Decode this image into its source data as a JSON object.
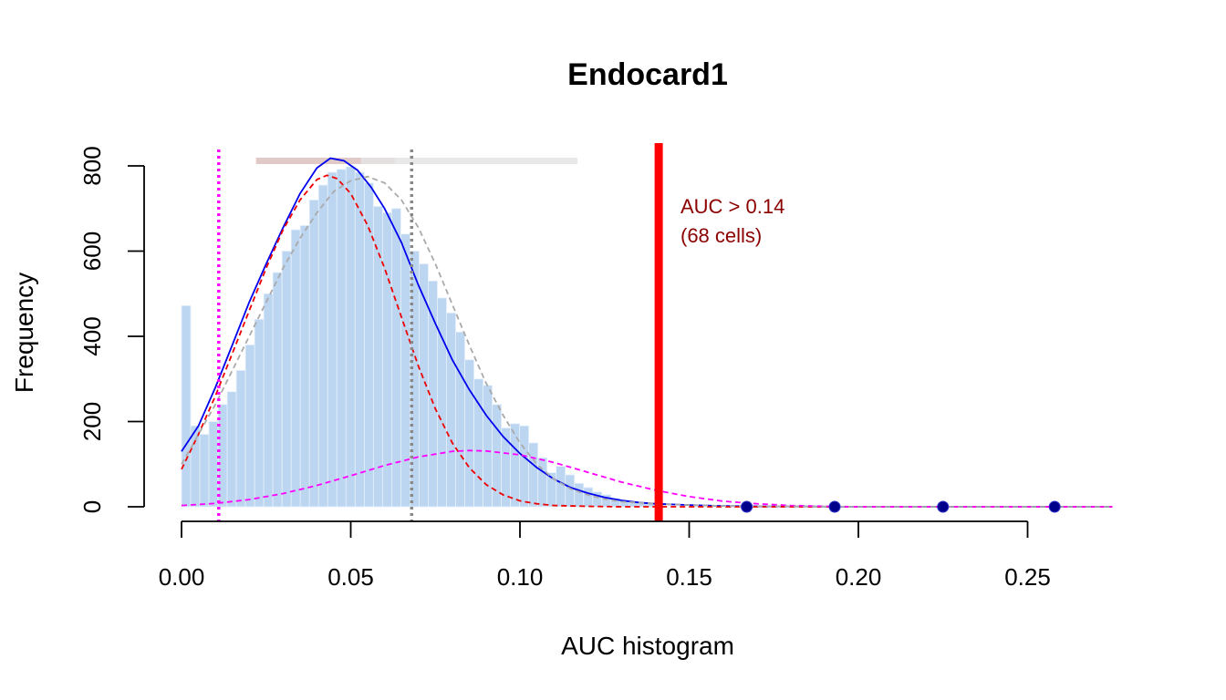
{
  "chart_data": {
    "type": "histogram",
    "title": "Endocard1",
    "xlabel": "AUC histogram",
    "ylabel": "Frequency",
    "xlim": [
      0,
      0.275
    ],
    "ylim": [
      0,
      850
    ],
    "x_ticks": [
      0,
      0.05,
      0.1,
      0.15,
      0.2,
      0.25
    ],
    "x_tick_labels": [
      "0.00",
      "0.05",
      "0.10",
      "0.15",
      "0.20",
      "0.25"
    ],
    "y_ticks": [
      0,
      200,
      400,
      600,
      800
    ],
    "y_tick_labels": [
      "0",
      "200",
      "400",
      "600",
      "800"
    ],
    "bin_width": 0.0027,
    "bins": [
      {
        "x": 0.0,
        "y": 472
      },
      {
        "x": 0.0027,
        "y": 190
      },
      {
        "x": 0.0054,
        "y": 170
      },
      {
        "x": 0.0081,
        "y": 200
      },
      {
        "x": 0.0108,
        "y": 240
      },
      {
        "x": 0.0135,
        "y": 270
      },
      {
        "x": 0.0162,
        "y": 320
      },
      {
        "x": 0.0189,
        "y": 380
      },
      {
        "x": 0.0216,
        "y": 440
      },
      {
        "x": 0.0243,
        "y": 500
      },
      {
        "x": 0.027,
        "y": 550
      },
      {
        "x": 0.0297,
        "y": 600
      },
      {
        "x": 0.0324,
        "y": 650
      },
      {
        "x": 0.0351,
        "y": 660
      },
      {
        "x": 0.0378,
        "y": 720
      },
      {
        "x": 0.0405,
        "y": 755
      },
      {
        "x": 0.0432,
        "y": 785
      },
      {
        "x": 0.0459,
        "y": 792
      },
      {
        "x": 0.0486,
        "y": 798
      },
      {
        "x": 0.0513,
        "y": 785
      },
      {
        "x": 0.054,
        "y": 760
      },
      {
        "x": 0.0567,
        "y": 705
      },
      {
        "x": 0.0594,
        "y": 690
      },
      {
        "x": 0.0621,
        "y": 700
      },
      {
        "x": 0.0648,
        "y": 640
      },
      {
        "x": 0.0675,
        "y": 600
      },
      {
        "x": 0.0702,
        "y": 570
      },
      {
        "x": 0.0729,
        "y": 530
      },
      {
        "x": 0.0756,
        "y": 490
      },
      {
        "x": 0.0783,
        "y": 455
      },
      {
        "x": 0.081,
        "y": 410
      },
      {
        "x": 0.0837,
        "y": 345
      },
      {
        "x": 0.0864,
        "y": 300
      },
      {
        "x": 0.0891,
        "y": 285
      },
      {
        "x": 0.0918,
        "y": 240
      },
      {
        "x": 0.0945,
        "y": 185
      },
      {
        "x": 0.0972,
        "y": 195
      },
      {
        "x": 0.0999,
        "y": 190
      },
      {
        "x": 0.1026,
        "y": 150
      },
      {
        "x": 0.1053,
        "y": 115
      },
      {
        "x": 0.108,
        "y": 80
      },
      {
        "x": 0.1107,
        "y": 95
      },
      {
        "x": 0.1134,
        "y": 75
      },
      {
        "x": 0.1161,
        "y": 55
      },
      {
        "x": 0.1188,
        "y": 45
      },
      {
        "x": 0.1215,
        "y": 35
      },
      {
        "x": 0.1242,
        "y": 28
      },
      {
        "x": 0.1269,
        "y": 20
      },
      {
        "x": 0.1296,
        "y": 15
      },
      {
        "x": 0.1323,
        "y": 12
      },
      {
        "x": 0.135,
        "y": 8
      },
      {
        "x": 0.1377,
        "y": 6
      },
      {
        "x": 0.1404,
        "y": 4
      }
    ],
    "curves": [
      {
        "role": "mixture fit",
        "color": "#0000ee",
        "dash": "solid",
        "points": [
          [
            0,
            130
          ],
          [
            0.005,
            190
          ],
          [
            0.01,
            280
          ],
          [
            0.015,
            380
          ],
          [
            0.02,
            480
          ],
          [
            0.025,
            570
          ],
          [
            0.03,
            655
          ],
          [
            0.035,
            735
          ],
          [
            0.04,
            795
          ],
          [
            0.044,
            818
          ],
          [
            0.048,
            812
          ],
          [
            0.052,
            790
          ],
          [
            0.056,
            750
          ],
          [
            0.06,
            700
          ],
          [
            0.065,
            620
          ],
          [
            0.07,
            520
          ],
          [
            0.075,
            430
          ],
          [
            0.08,
            345
          ],
          [
            0.085,
            275
          ],
          [
            0.09,
            215
          ],
          [
            0.095,
            165
          ],
          [
            0.1,
            125
          ],
          [
            0.105,
            92
          ],
          [
            0.11,
            65
          ],
          [
            0.115,
            45
          ],
          [
            0.12,
            32
          ],
          [
            0.125,
            22
          ],
          [
            0.13,
            15
          ],
          [
            0.135,
            10
          ],
          [
            0.14,
            7
          ],
          [
            0.15,
            4
          ],
          [
            0.16,
            2
          ],
          [
            0.17,
            1
          ],
          [
            0.2,
            0
          ],
          [
            0.275,
            0
          ]
        ]
      },
      {
        "role": "component 1",
        "color": "#ee0000",
        "dash": "dashed",
        "points": [
          [
            0,
            88
          ],
          [
            0.005,
            170
          ],
          [
            0.01,
            260
          ],
          [
            0.015,
            360
          ],
          [
            0.02,
            460
          ],
          [
            0.025,
            560
          ],
          [
            0.03,
            650
          ],
          [
            0.035,
            720
          ],
          [
            0.04,
            768
          ],
          [
            0.043,
            778
          ],
          [
            0.046,
            770
          ],
          [
            0.05,
            735
          ],
          [
            0.055,
            660
          ],
          [
            0.06,
            560
          ],
          [
            0.065,
            445
          ],
          [
            0.07,
            330
          ],
          [
            0.075,
            230
          ],
          [
            0.08,
            150
          ],
          [
            0.085,
            92
          ],
          [
            0.09,
            52
          ],
          [
            0.095,
            28
          ],
          [
            0.1,
            14
          ],
          [
            0.105,
            7
          ],
          [
            0.11,
            3
          ],
          [
            0.12,
            1
          ],
          [
            0.13,
            0
          ],
          [
            0.275,
            0
          ]
        ]
      },
      {
        "role": "component 2",
        "color": "#ff00ff",
        "dash": "dashed",
        "points": [
          [
            0,
            3
          ],
          [
            0.01,
            8
          ],
          [
            0.02,
            17
          ],
          [
            0.03,
            31
          ],
          [
            0.04,
            50
          ],
          [
            0.05,
            73
          ],
          [
            0.06,
            97
          ],
          [
            0.07,
            117
          ],
          [
            0.08,
            130
          ],
          [
            0.085,
            132
          ],
          [
            0.09,
            131
          ],
          [
            0.1,
            122
          ],
          [
            0.11,
            104
          ],
          [
            0.12,
            81
          ],
          [
            0.13,
            58
          ],
          [
            0.14,
            39
          ],
          [
            0.15,
            24
          ],
          [
            0.16,
            13
          ],
          [
            0.17,
            7
          ],
          [
            0.18,
            3
          ],
          [
            0.19,
            1
          ],
          [
            0.2,
            0
          ],
          [
            0.275,
            0
          ]
        ]
      },
      {
        "role": "density",
        "color": "#aaaaaa",
        "dash": "dashed",
        "points": [
          [
            0,
            100
          ],
          [
            0.005,
            170
          ],
          [
            0.01,
            240
          ],
          [
            0.015,
            320
          ],
          [
            0.02,
            400
          ],
          [
            0.025,
            480
          ],
          [
            0.03,
            560
          ],
          [
            0.035,
            630
          ],
          [
            0.04,
            690
          ],
          [
            0.045,
            740
          ],
          [
            0.05,
            765
          ],
          [
            0.055,
            775
          ],
          [
            0.06,
            760
          ],
          [
            0.065,
            720
          ],
          [
            0.07,
            655
          ],
          [
            0.075,
            570
          ],
          [
            0.08,
            475
          ],
          [
            0.085,
            380
          ],
          [
            0.09,
            290
          ],
          [
            0.095,
            215
          ],
          [
            0.1,
            150
          ],
          [
            0.105,
            100
          ],
          [
            0.11,
            65
          ],
          [
            0.115,
            42
          ],
          [
            0.12,
            28
          ],
          [
            0.125,
            18
          ],
          [
            0.13,
            12
          ],
          [
            0.14,
            7
          ],
          [
            0.15,
            4
          ],
          [
            0.16,
            2
          ],
          [
            0.18,
            1
          ],
          [
            0.2,
            0
          ],
          [
            0.275,
            0
          ]
        ]
      }
    ],
    "vlines": [
      {
        "x": 0.011,
        "color": "#ff00ff",
        "style": "dotted"
      },
      {
        "x": 0.068,
        "color": "#888888",
        "style": "dotted"
      },
      {
        "x": 0.141,
        "color": "#ff0000",
        "style": "thick"
      }
    ],
    "top_bars": [
      {
        "x_from": 0.022,
        "x_to": 0.063,
        "color": "#dcc0bd"
      },
      {
        "x_from": 0.053,
        "x_to": 0.117,
        "color": "#e4e4e4"
      }
    ],
    "points": [
      {
        "x": 0.167,
        "y": 0
      },
      {
        "x": 0.193,
        "y": 0
      },
      {
        "x": 0.225,
        "y": 0
      },
      {
        "x": 0.258,
        "y": 0
      }
    ],
    "annotation": {
      "line1": "AUC > 0.14",
      "line2": "(68 cells)",
      "color": "#8b0000"
    },
    "colors": {
      "bars": "#bcd6f2",
      "bar_border": "#e6f0fb",
      "axis": "#000000",
      "points": "#00008b"
    }
  }
}
